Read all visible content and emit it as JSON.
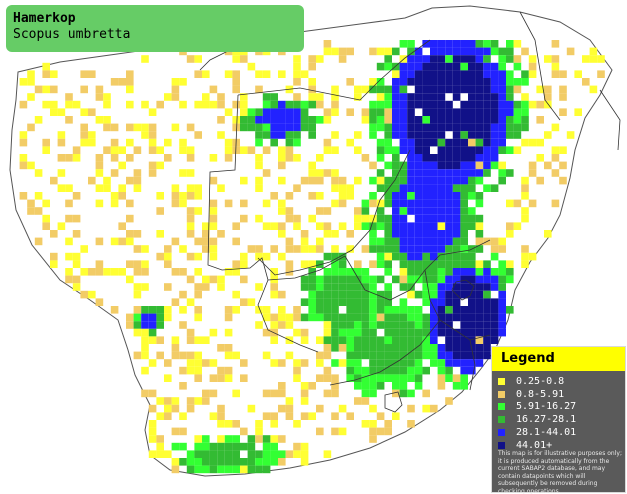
{
  "title": {
    "common_name": "Hamerkop",
    "scientific_name": "Scopus umbretta"
  },
  "legend": {
    "heading": "Legend",
    "items": [
      {
        "label": "0.25-0.8",
        "color": "#ffff33"
      },
      {
        "label": "0.8-5.91",
        "color": "#f2cc66"
      },
      {
        "label": "5.91-16.27",
        "color": "#33ff33"
      },
      {
        "label": "16.27-28.1",
        "color": "#33bb33"
      },
      {
        "label": "28.1-44.01",
        "color": "#2222ff"
      },
      {
        "label": "44.01+",
        "color": "#111188"
      }
    ],
    "disclaimer": "This map is for illustrative purposes only; it is produced automatically from the current SABAP2 database, and may contain datapoints which will subsequently be removed during checking operations."
  },
  "map": {
    "ocean_color": "#ffffff",
    "land_color": "#ffffff",
    "border_color": "#444444"
  }
}
